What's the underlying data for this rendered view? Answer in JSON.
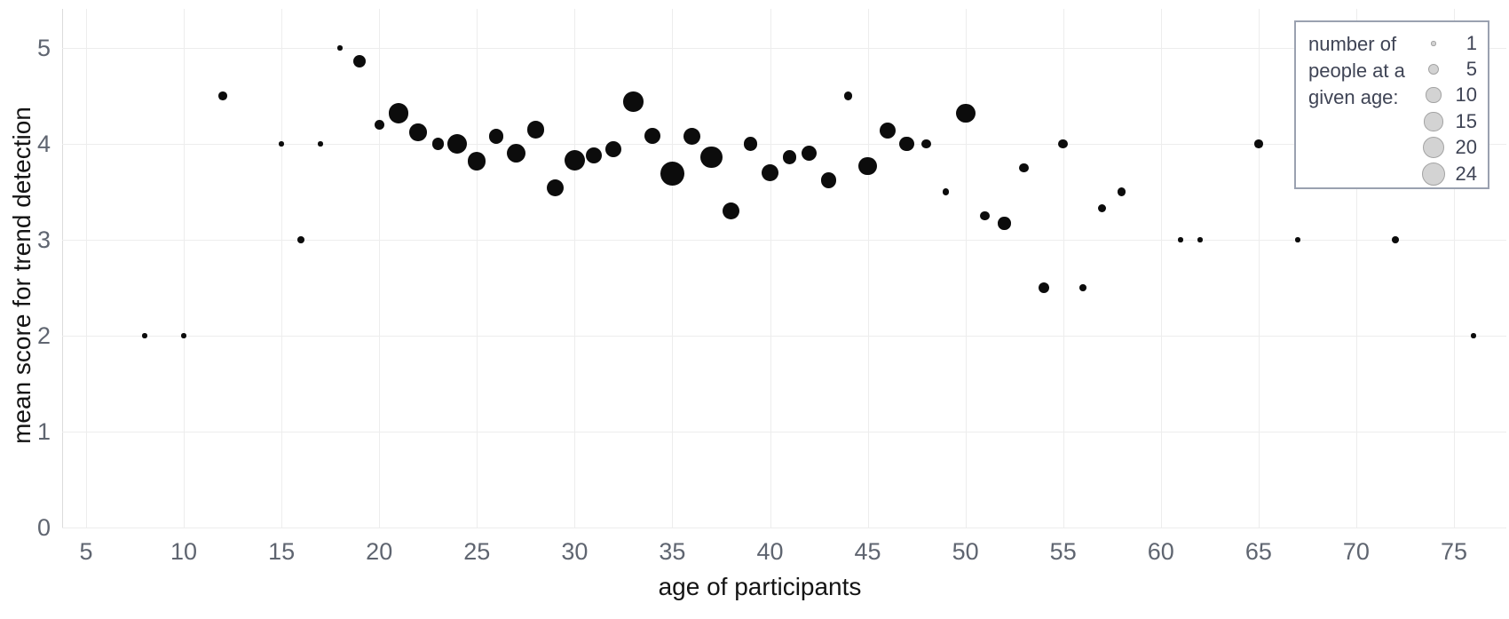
{
  "chart_data": {
    "type": "scatter",
    "title": "",
    "xlabel": "age of participants",
    "ylabel": "mean score for trend detection",
    "xlim": [
      4,
      77
    ],
    "ylim": [
      0,
      5.4
    ],
    "xticks": [
      5,
      10,
      15,
      20,
      25,
      30,
      35,
      40,
      45,
      50,
      55,
      60,
      65,
      70,
      75
    ],
    "yticks": [
      0,
      1,
      2,
      3,
      4,
      5
    ],
    "grid": true,
    "point_style": "filled black circles, area proportional to count",
    "legend": {
      "position": "top-right",
      "title_lines": [
        "number of",
        "people at a",
        "given age:"
      ],
      "sizes": [
        1,
        5,
        10,
        15,
        20,
        24
      ]
    },
    "points": [
      {
        "age": 8,
        "score": 2.0,
        "count": 1
      },
      {
        "age": 10,
        "score": 2.0,
        "count": 1
      },
      {
        "age": 12,
        "score": 4.5,
        "count": 3
      },
      {
        "age": 15,
        "score": 4.0,
        "count": 1
      },
      {
        "age": 16,
        "score": 3.0,
        "count": 2
      },
      {
        "age": 17,
        "score": 4.0,
        "count": 1
      },
      {
        "age": 18,
        "score": 5.0,
        "count": 1
      },
      {
        "age": 19,
        "score": 4.86,
        "count": 7
      },
      {
        "age": 20,
        "score": 4.2,
        "count": 4
      },
      {
        "age": 21,
        "score": 4.32,
        "count": 17
      },
      {
        "age": 22,
        "score": 4.12,
        "count": 13
      },
      {
        "age": 23,
        "score": 4.0,
        "count": 6
      },
      {
        "age": 24,
        "score": 4.0,
        "count": 17
      },
      {
        "age": 25,
        "score": 3.82,
        "count": 14
      },
      {
        "age": 26,
        "score": 4.08,
        "count": 9
      },
      {
        "age": 27,
        "score": 3.9,
        "count": 15
      },
      {
        "age": 28,
        "score": 4.15,
        "count": 13
      },
      {
        "age": 29,
        "score": 3.54,
        "count": 13
      },
      {
        "age": 30,
        "score": 3.83,
        "count": 19
      },
      {
        "age": 31,
        "score": 3.88,
        "count": 11
      },
      {
        "age": 32,
        "score": 3.94,
        "count": 11
      },
      {
        "age": 33,
        "score": 4.44,
        "count": 17
      },
      {
        "age": 34,
        "score": 4.08,
        "count": 11
      },
      {
        "age": 35,
        "score": 3.69,
        "count": 24
      },
      {
        "age": 36,
        "score": 4.08,
        "count": 13
      },
      {
        "age": 37,
        "score": 3.86,
        "count": 20
      },
      {
        "age": 38,
        "score": 3.3,
        "count": 13
      },
      {
        "age": 39,
        "score": 4.0,
        "count": 8
      },
      {
        "age": 40,
        "score": 3.7,
        "count": 12
      },
      {
        "age": 41,
        "score": 3.86,
        "count": 8
      },
      {
        "age": 42,
        "score": 3.9,
        "count": 10
      },
      {
        "age": 43,
        "score": 3.62,
        "count": 10
      },
      {
        "age": 44,
        "score": 4.5,
        "count": 3
      },
      {
        "age": 45,
        "score": 3.77,
        "count": 14
      },
      {
        "age": 46,
        "score": 4.14,
        "count": 11
      },
      {
        "age": 47,
        "score": 4.0,
        "count": 9
      },
      {
        "age": 48,
        "score": 4.0,
        "count": 4
      },
      {
        "age": 49,
        "score": 3.5,
        "count": 2
      },
      {
        "age": 50,
        "score": 4.32,
        "count": 16
      },
      {
        "age": 51,
        "score": 3.25,
        "count": 4
      },
      {
        "age": 52,
        "score": 3.17,
        "count": 7
      },
      {
        "age": 53,
        "score": 3.75,
        "count": 4
      },
      {
        "age": 54,
        "score": 2.5,
        "count": 5
      },
      {
        "age": 55,
        "score": 4.0,
        "count": 4
      },
      {
        "age": 56,
        "score": 2.5,
        "count": 2
      },
      {
        "age": 57,
        "score": 3.33,
        "count": 3
      },
      {
        "age": 58,
        "score": 3.5,
        "count": 3
      },
      {
        "age": 61,
        "score": 3.0,
        "count": 1
      },
      {
        "age": 62,
        "score": 3.0,
        "count": 1
      },
      {
        "age": 65,
        "score": 4.0,
        "count": 3
      },
      {
        "age": 67,
        "score": 3.0,
        "count": 1
      },
      {
        "age": 72,
        "score": 3.0,
        "count": 2
      },
      {
        "age": 76,
        "score": 2.0,
        "count": 1
      }
    ]
  },
  "colors": {
    "point": "#0c0c0c",
    "grid": "#ededed",
    "axis_line": "#dcdcdc",
    "tick_label": "#5f6570",
    "axis_title": "#141414",
    "legend_border": "#9aa1b0",
    "legend_text": "#3f4455",
    "legend_circle_fill": "#d3d3d3",
    "legend_circle_border": "#a3a3a3",
    "background": "#ffffff"
  }
}
